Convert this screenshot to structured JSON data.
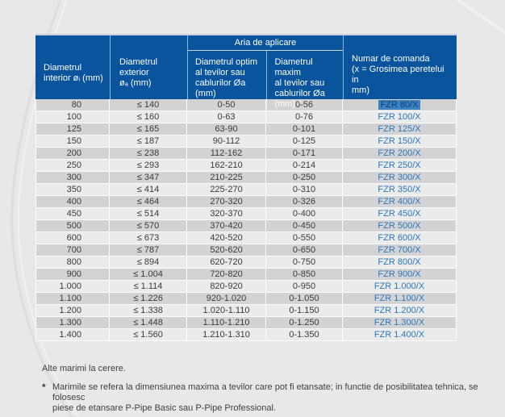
{
  "table": {
    "group_header": "Aria de aplicare",
    "columns": [
      {
        "label": "Diametrul\ninterior øᵢ (mm)"
      },
      {
        "label": "Diametrul\nexterior\nøₐ (mm)"
      },
      {
        "label": "Diametrul optim\nal tevilor sau\ncablurilor Øa\n(mm)"
      },
      {
        "label": "Diametrul maxim\nal tevilor sau\ncablurilor Øa\n(mm) *"
      },
      {
        "label": "Numar de comanda\n(x = Grosimea peretelui in\nmm)"
      }
    ],
    "selected_row_index": 0,
    "rows": [
      [
        "80",
        "≤ 140",
        "0-50",
        "0-56",
        "FZR 80/X"
      ],
      [
        "100",
        "≤ 160",
        "0-63",
        "0-76",
        "FZR 100/X"
      ],
      [
        "125",
        "≤ 165",
        "63-90",
        "0-101",
        "FZR 125/X"
      ],
      [
        "150",
        "≤ 187",
        "90-112",
        "0-125",
        "FZR 150/X"
      ],
      [
        "200",
        "≤ 238",
        "112-162",
        "0-171",
        "FZR 200/X"
      ],
      [
        "250",
        "≤ 293",
        "162-210",
        "0-214",
        "FZR 250/X"
      ],
      [
        "300",
        "≤ 347",
        "210-225",
        "0-250",
        "FZR 300/X"
      ],
      [
        "350",
        "≤ 414",
        "225-270",
        "0-310",
        "FZR 350/X"
      ],
      [
        "400",
        "≤ 464",
        "270-320",
        "0-326",
        "FZR 400/X"
      ],
      [
        "450",
        "≤ 514",
        "320-370",
        "0-400",
        "FZR 450/X"
      ],
      [
        "500",
        "≤ 570",
        "370-420",
        "0-450",
        "FZR 500/X"
      ],
      [
        "600",
        "≤ 673",
        "420-520",
        "0-550",
        "FZR 600/X"
      ],
      [
        "700",
        "≤ 787",
        "520-620",
        "0-650",
        "FZR 700/X"
      ],
      [
        "800",
        "≤ 894",
        "620-720",
        "0-750",
        "FZR 800/X"
      ],
      [
        "900",
        "≤ 1.004",
        "720-820",
        "0-850",
        "FZR 900/X"
      ],
      [
        "1.000",
        "≤ 1.114",
        "820-920",
        "0-950",
        "FZR 1.000/X"
      ],
      [
        "1.100",
        "≤ 1.226",
        "920-1.020",
        "0-1.050",
        "FZR 1.100/X"
      ],
      [
        "1.200",
        "≤ 1.338",
        "1.020-1.110",
        "0-1.150",
        "FZR 1.200/X"
      ],
      [
        "1.300",
        "≤ 1.448",
        "1.110-1.210",
        "0-1.250",
        "FZR 1.300/X"
      ],
      [
        "1.400",
        "≤ 1.560",
        "1.210-1.310",
        "0-1.350",
        "FZR 1.400/X"
      ]
    ]
  },
  "footer": {
    "note1": "Alte marimi la cerere.",
    "star": "*",
    "note2": "Marimile se refera la dimensiunea maxima a tevilor care pot fi etansate; in functie de posibilitatea tehnica, se folosesc\npiese de etansare P-Pipe Basic sau P-Pipe Professional."
  },
  "colors": {
    "page_bg": "#e8e8e9",
    "header_bg": "#0a539d",
    "table_top_border": "#c5cedf",
    "row_odd": "#d3d3d5",
    "row_even": "#ebebec",
    "text": "#3a3a3c",
    "link": "#2b77b9",
    "selection_bg": "#3d83c4",
    "selection_text": "#0c3c6e",
    "footer_text": "#3f3f41"
  }
}
